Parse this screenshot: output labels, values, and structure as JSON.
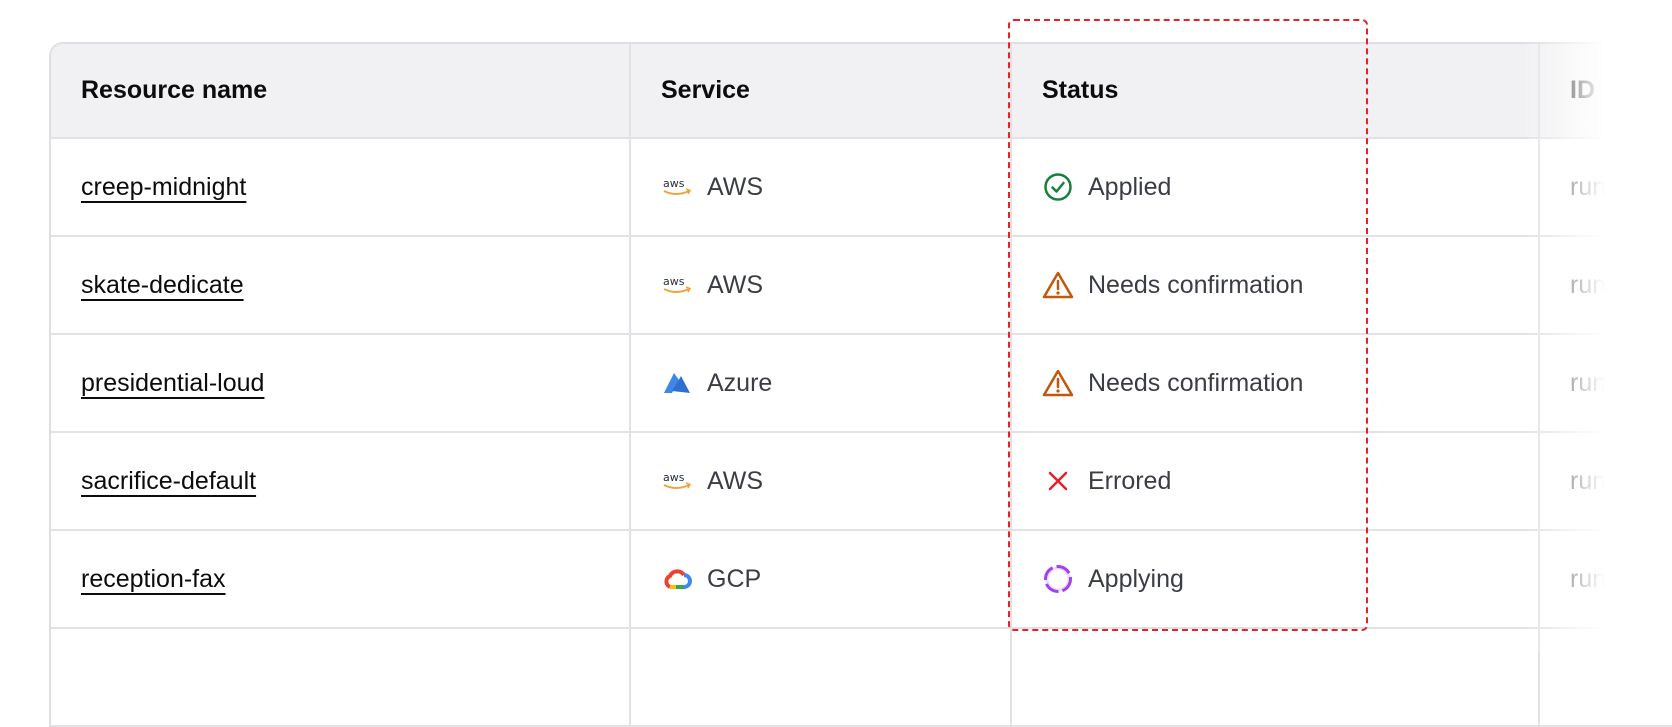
{
  "table": {
    "headers": [
      "Resource name",
      "Service",
      "Status",
      "ID"
    ],
    "rows": [
      {
        "name": "creep-midnight",
        "service": "AWS",
        "service_icon": "aws-logo",
        "status": "Applied",
        "status_icon": "check-circle",
        "id": "run-"
      },
      {
        "name": "skate-dedicate",
        "service": "AWS",
        "service_icon": "aws-logo",
        "status": "Needs confirmation",
        "status_icon": "warning-triangle",
        "id": "run-"
      },
      {
        "name": "presidential-loud",
        "service": "Azure",
        "service_icon": "azure-logo",
        "status": "Needs confirmation",
        "status_icon": "warning-triangle",
        "id": "run-"
      },
      {
        "name": "sacrifice-default",
        "service": "AWS",
        "service_icon": "aws-logo",
        "status": "Errored",
        "status_icon": "x-mark",
        "id": "run-"
      },
      {
        "name": "reception-fax",
        "service": "GCP",
        "service_icon": "gcp-logo",
        "status": "Applying",
        "status_icon": "spinner-circle",
        "id": "run-"
      }
    ]
  },
  "colors": {
    "applied": "#16813a",
    "warning": "#c2570c",
    "errored": "#e52228",
    "applying": "#a43ff2",
    "highlight": "#e52228"
  }
}
